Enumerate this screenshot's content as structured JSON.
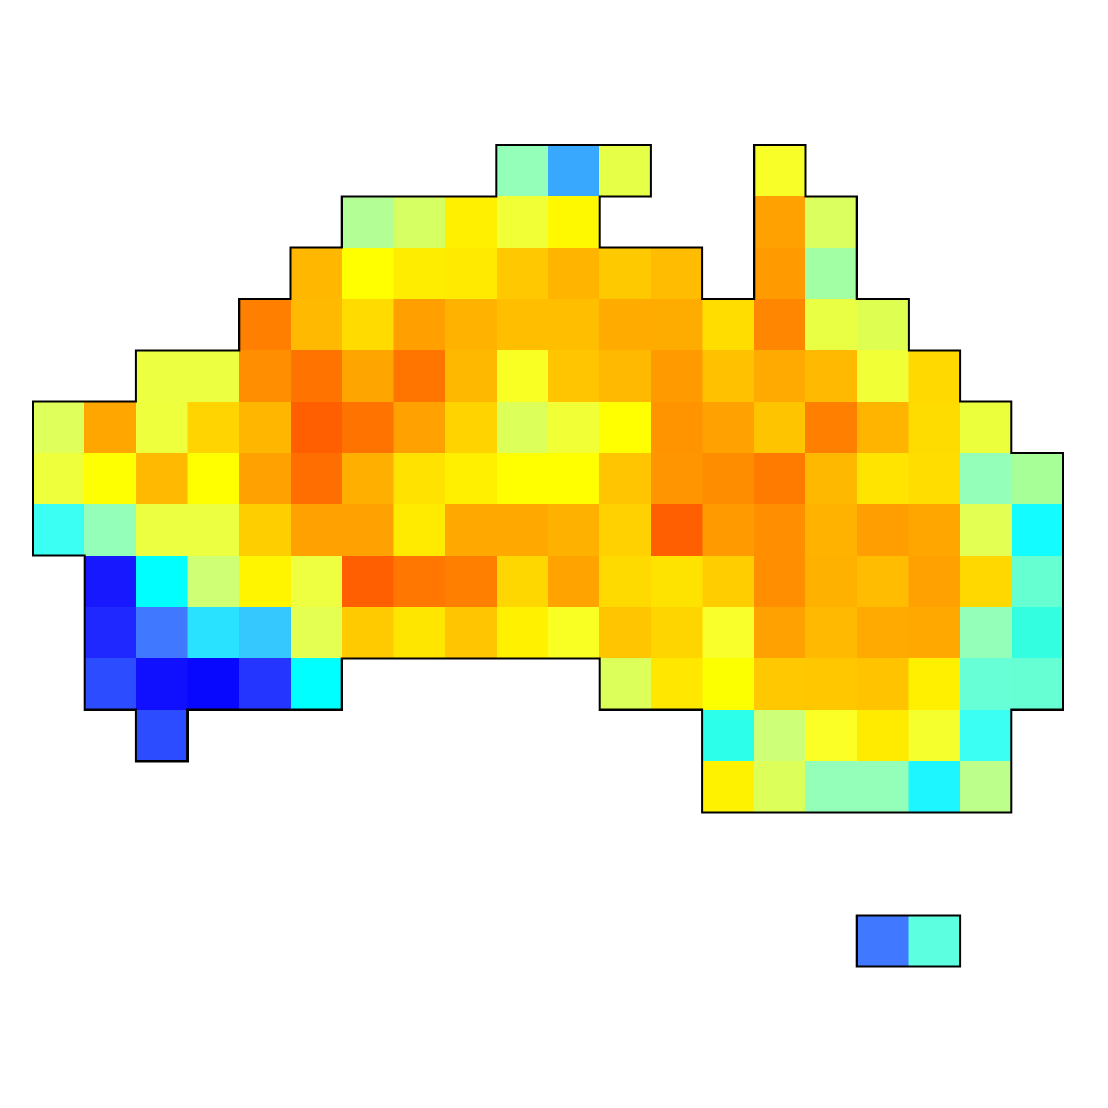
{
  "map": {
    "rows": [
      {
        "row": 0,
        "start": 9,
        "colors": [
          "#93ffb8",
          "#38a8ff",
          "#e6ff47"
        ]
      },
      {
        "row": 0,
        "start": 14,
        "colors": [
          "#f8ff28"
        ]
      },
      {
        "row": 1,
        "start": 6,
        "colors": [
          "#b3ff96",
          "#d6ff63",
          "#fff000",
          "#f1ff37",
          "#fff900"
        ]
      },
      {
        "row": 1,
        "start": 14,
        "colors": [
          "#ffa100",
          "#daff5e"
        ]
      },
      {
        "row": 2,
        "start": 5,
        "colors": [
          "#ffb700",
          "#ffff00",
          "#ffed00",
          "#ffea00",
          "#ffc800",
          "#ffb500",
          "#ffc900",
          "#ffbc00"
        ]
      },
      {
        "row": 2,
        "start": 14,
        "colors": [
          "#ff9b00",
          "#a3ffa3"
        ]
      },
      {
        "row": 3,
        "start": 4,
        "colors": [
          "#ff7f00",
          "#ffb900",
          "#ffdb00",
          "#ff9f00",
          "#ffb300",
          "#ffbf00",
          "#ffbf00",
          "#ffab00",
          "#ffac00",
          "#ffdd00",
          "#ff8600",
          "#e8ff43",
          "#deff52"
        ]
      },
      {
        "row": 4,
        "start": 2,
        "colors": [
          "#ecff41",
          "#ecff41",
          "#ff8f00",
          "#ff7300",
          "#ffa500",
          "#ff7500",
          "#ffb800",
          "#f9ff23",
          "#ffc500",
          "#ffb900",
          "#ff9b00",
          "#ffc100",
          "#ffaa00",
          "#ffb900",
          "#f1ff37",
          "#ffd900"
        ]
      },
      {
        "row": 5,
        "start": 0,
        "colors": [
          "#dfff5a",
          "#ffa600",
          "#eeff3e",
          "#ffd400",
          "#ffb600",
          "#ff5f00",
          "#ff7400",
          "#ffa100",
          "#ffd300",
          "#dcff5a",
          "#f1ff37",
          "#ffff00",
          "#ff9400",
          "#ffa100",
          "#ffc400",
          "#ff7f00",
          "#ffb500",
          "#ffdc00",
          "#ecff3d"
        ]
      },
      {
        "row": 6,
        "start": 0,
        "colors": [
          "#eeff3c",
          "#feff00",
          "#ffb900",
          "#ffff00",
          "#ffa100",
          "#ff6e00",
          "#ffaf00",
          "#ffe200",
          "#fff000",
          "#ffff00",
          "#ffff00",
          "#ffc500",
          "#ff9500",
          "#ff8d00",
          "#ff7b00",
          "#ffb800",
          "#ffe400",
          "#ffdd00",
          "#93ffb8",
          "#a7ff98"
        ]
      },
      {
        "row": 7,
        "start": 0,
        "colors": [
          "#3cfff3",
          "#93ffb8",
          "#ecff41",
          "#ecff41",
          "#ffce00",
          "#ffa100",
          "#ffa100",
          "#ffeb00",
          "#ffa900",
          "#ffa900",
          "#ffb100",
          "#ffd100",
          "#ff5f00",
          "#ff9b00",
          "#ff8f00",
          "#ffb200",
          "#ff9e00",
          "#ffa600",
          "#e3ff54",
          "#13fcff"
        ]
      },
      {
        "row": 8,
        "start": 1,
        "colors": [
          "#1818ff",
          "#00ffff",
          "#cfff75",
          "#fff500",
          "#eeff41",
          "#ff5f00",
          "#ff7700",
          "#ff7f00",
          "#ffd700",
          "#ffa300",
          "#ffda00",
          "#ffe300",
          "#ffcd00",
          "#ff8f00",
          "#ffb100",
          "#ffbc00",
          "#ffa100",
          "#ffd800",
          "#66ffd2"
        ]
      },
      {
        "row": 9,
        "start": 1,
        "colors": [
          "#1e28ff",
          "#4078ff",
          "#28e2ff",
          "#35c8ff",
          "#e4ff52",
          "#ffcb00",
          "#ffe600",
          "#ffc500",
          "#fff100",
          "#f9ff23",
          "#ffc500",
          "#ffd500",
          "#f8ff2a",
          "#ffa100",
          "#ffb900",
          "#ffaa00",
          "#ffa900",
          "#93ffb8",
          "#33ffe0"
        ]
      },
      {
        "row": 10,
        "start": 1,
        "colors": [
          "#2c4cff",
          "#1010ff",
          "#0808ff",
          "#2435ff",
          "#00ffff"
        ]
      },
      {
        "row": 10,
        "start": 11,
        "colors": [
          "#dcff5a",
          "#ffe700",
          "#fbff00",
          "#ffc800",
          "#ffc700",
          "#ffc300",
          "#fff000",
          "#66ffd6",
          "#66ffd4"
        ]
      },
      {
        "row": 11,
        "start": 2,
        "colors": [
          "#2c4cff"
        ]
      },
      {
        "row": 11,
        "start": 13,
        "colors": [
          "#2cffea",
          "#cdff79",
          "#fbff26",
          "#ffeb00",
          "#f6ff2e",
          "#3cfff3"
        ]
      },
      {
        "row": 12,
        "start": 13,
        "colors": [
          "#fff200",
          "#dcff5a",
          "#93ffb8",
          "#93ffb8",
          "#1ef6ff",
          "#bcff8a"
        ]
      },
      {
        "row": 15,
        "start": 16,
        "colors": [
          "#4078ff",
          "#5cffe0"
        ]
      }
    ]
  }
}
